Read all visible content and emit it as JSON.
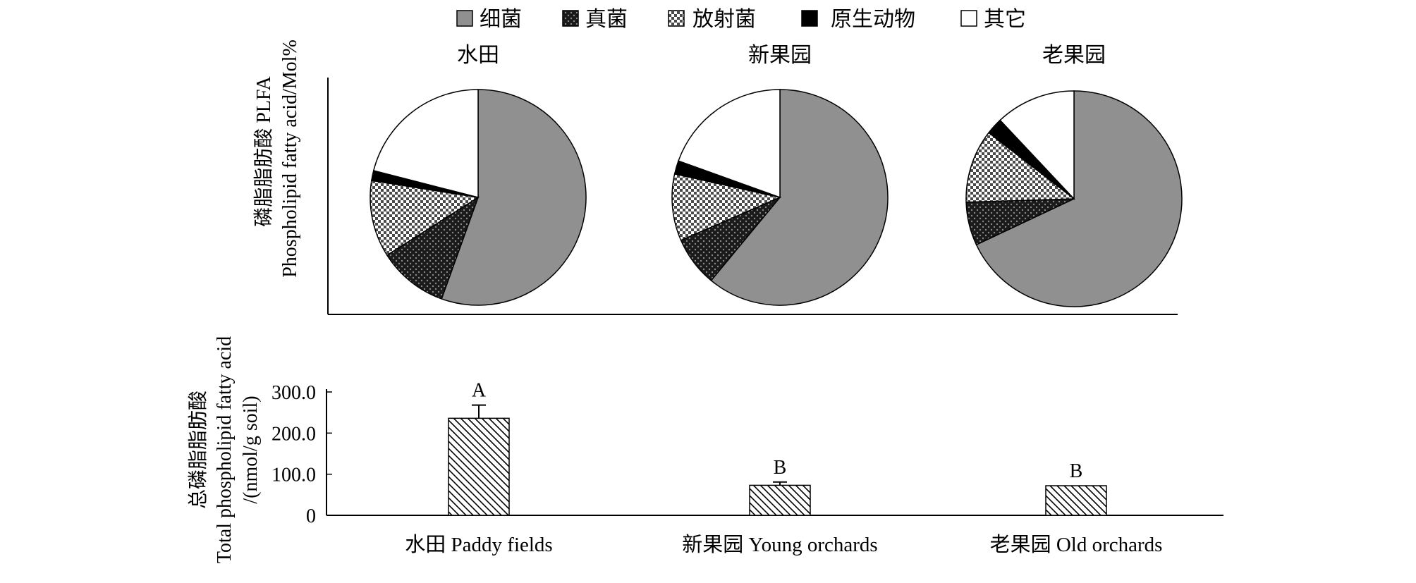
{
  "legend": {
    "items": [
      {
        "key": "bacteria",
        "label": "细菌",
        "color": "#909090",
        "pattern": "solid"
      },
      {
        "key": "fungi",
        "label": "真菌",
        "color": "#2b2b2b",
        "pattern": "dots-dark"
      },
      {
        "key": "actinomycetes",
        "label": "放射菌",
        "color": "#a8a8a8",
        "pattern": "check-light"
      },
      {
        "key": "protozoa",
        "label": "原生动物",
        "color": "#000000",
        "pattern": "solid"
      },
      {
        "key": "other",
        "label": "其它",
        "color": "#ffffff",
        "pattern": "solid"
      }
    ]
  },
  "pie_panel": {
    "ylabel_line1": "磷脂脂肪酸 PLFA",
    "ylabel_line2": "Phospholipid fatty acid/Mol%"
  },
  "bar_panel": {
    "ylabel_line1": "总磷脂脂肪酸",
    "ylabel_line2": "Total phospholipid fatty acid",
    "ylabel_line3": "/(nmol/g soil)"
  },
  "chart_data": [
    {
      "type": "pie",
      "title": "水田",
      "categories": [
        "细菌",
        "真菌",
        "放射菌",
        "原生动物",
        "其它"
      ],
      "values": [
        55.5,
        10.5,
        11.5,
        1.5,
        21.0
      ]
    },
    {
      "type": "pie",
      "title": "新果园",
      "categories": [
        "细菌",
        "真菌",
        "放射菌",
        "原生动物",
        "其它"
      ],
      "values": [
        61.0,
        7.5,
        10.0,
        2.0,
        19.5
      ]
    },
    {
      "type": "pie",
      "title": "老果园",
      "categories": [
        "细菌",
        "真菌",
        "放射菌",
        "原生动物",
        "其它"
      ],
      "values": [
        68.0,
        6.5,
        11.0,
        2.5,
        12.0
      ]
    },
    {
      "type": "bar",
      "categories": [
        "水田 Paddy fields",
        "新果园 Young orchards",
        "老果园 Old orchards"
      ],
      "values": [
        236,
        73,
        72
      ],
      "errors": [
        32,
        8,
        0
      ],
      "significance": [
        "A",
        "B",
        "B"
      ],
      "ylim": [
        0,
        300
      ],
      "yticks": [
        0,
        100,
        200,
        300
      ],
      "ytick_labels": [
        "0",
        "100.0",
        "200.0",
        "300.0"
      ]
    }
  ]
}
